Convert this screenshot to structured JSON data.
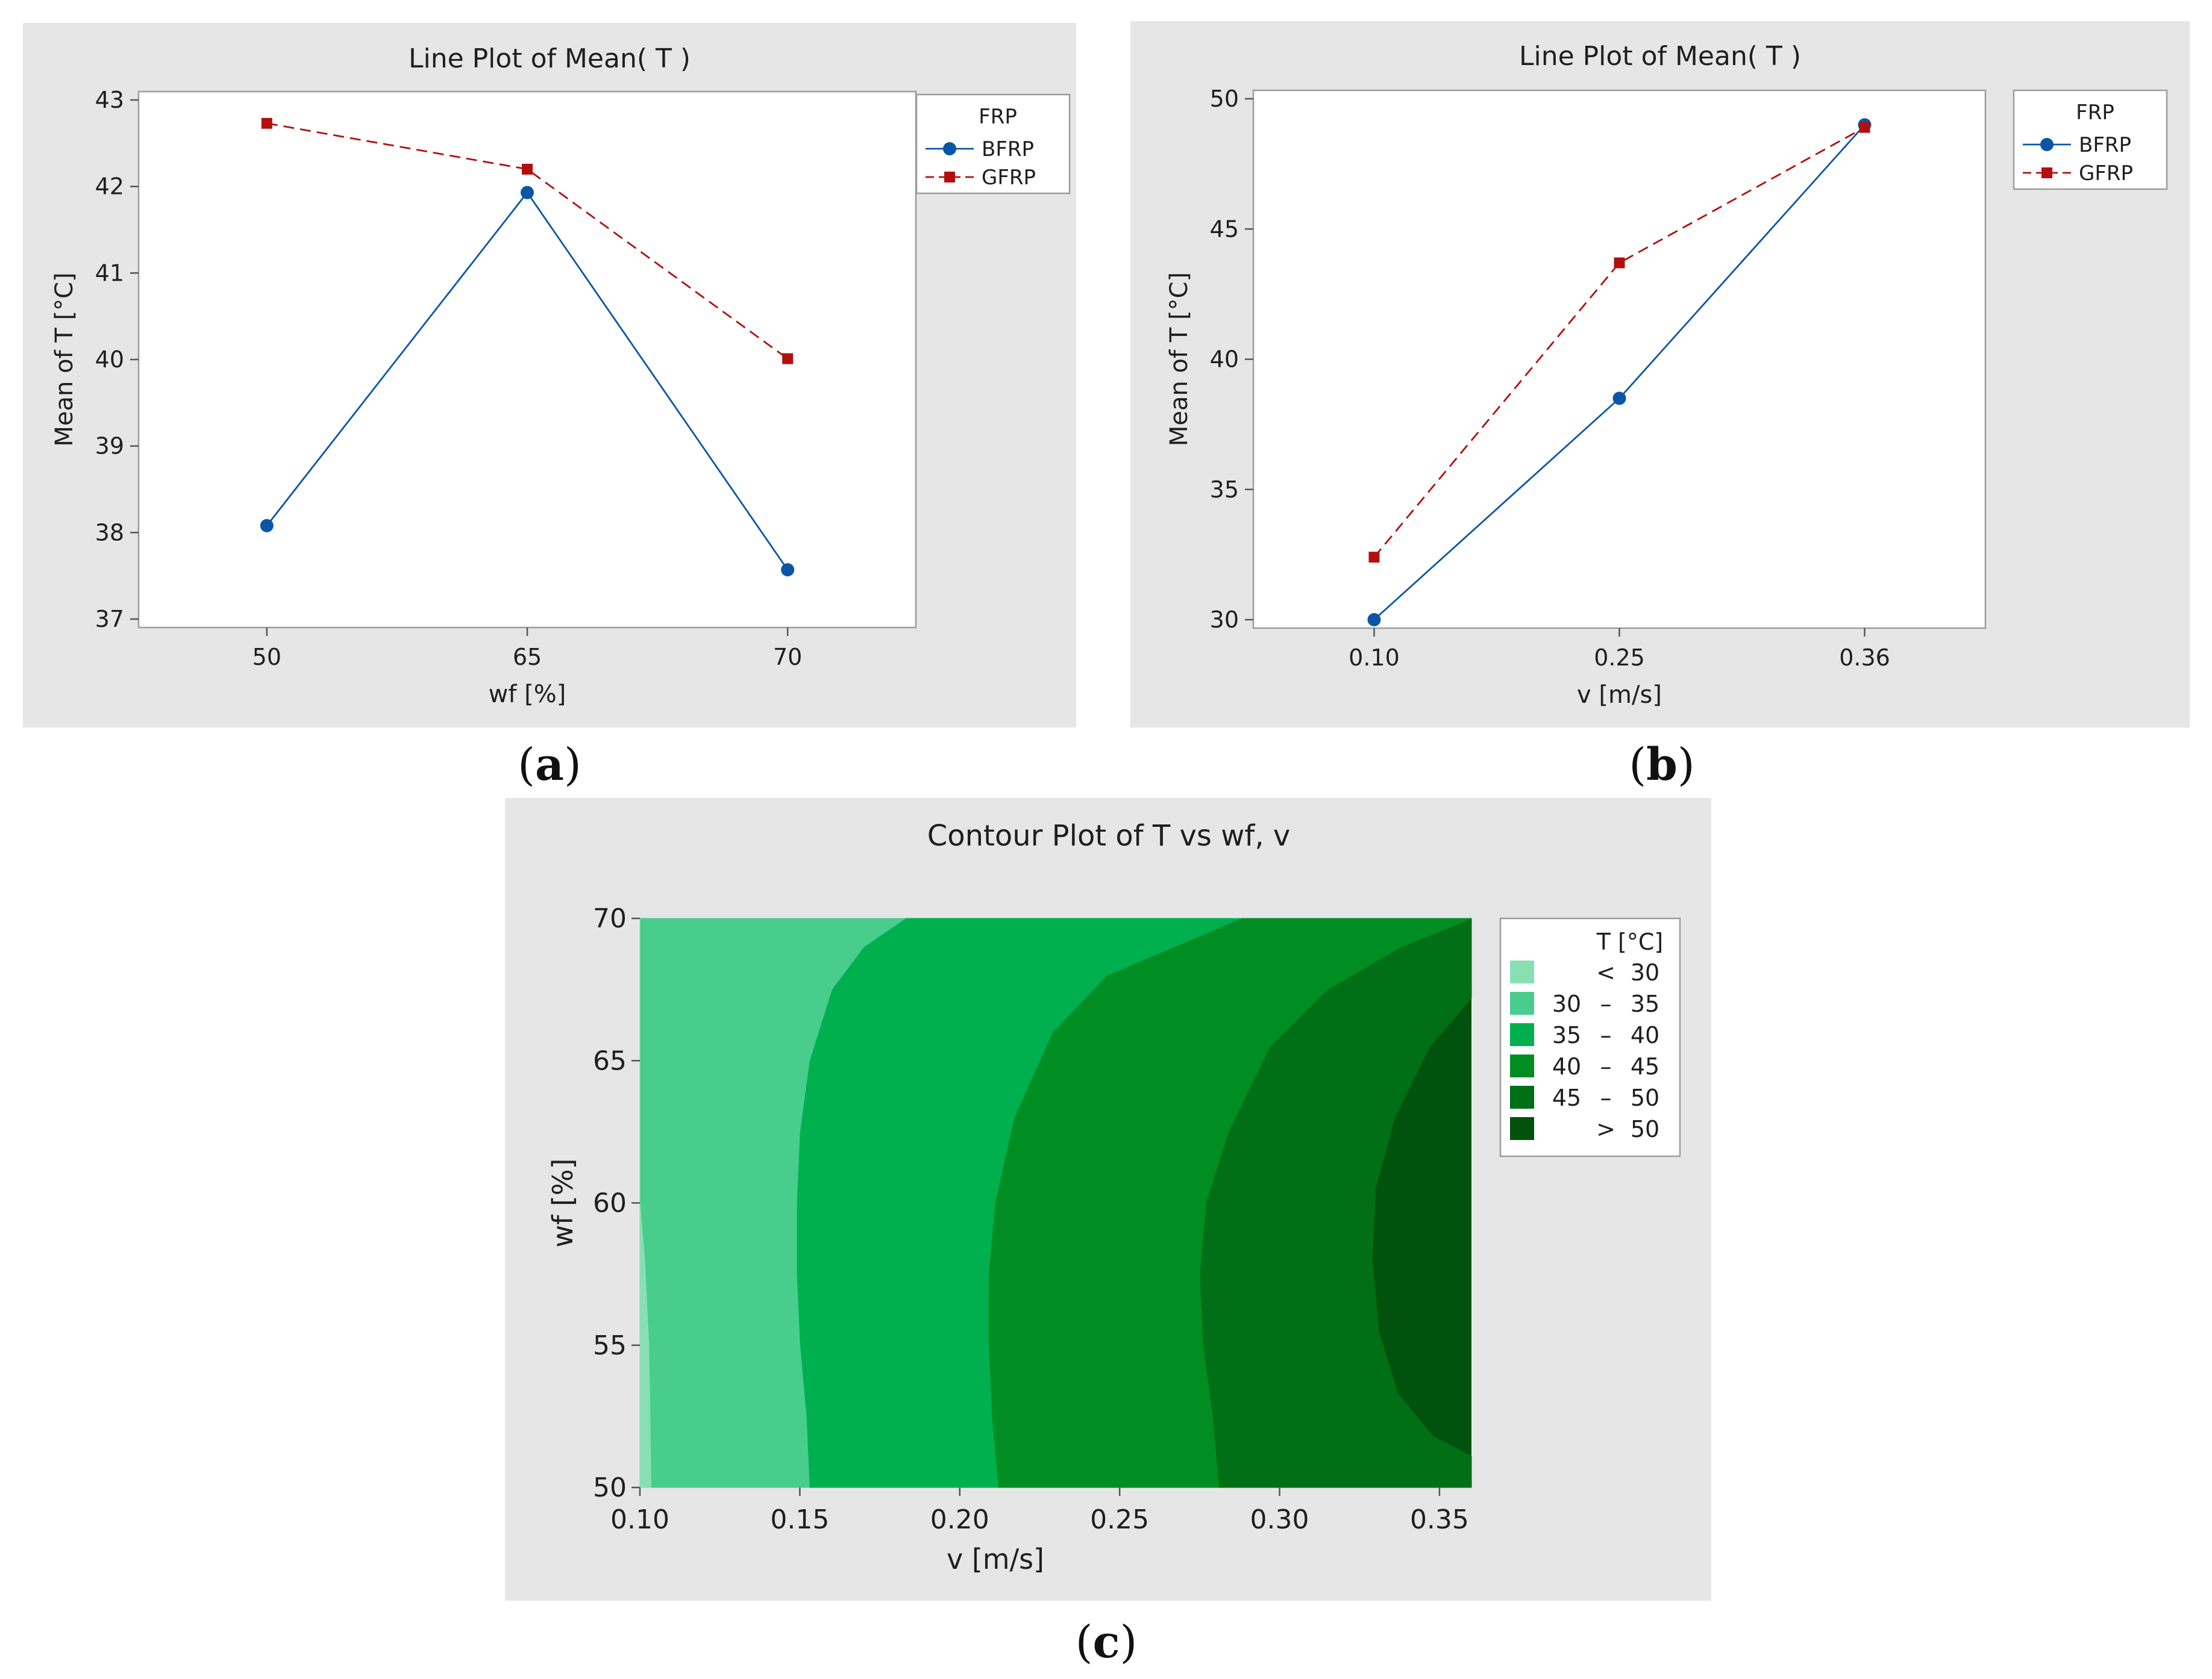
{
  "chart_data": [
    {
      "id": "a",
      "type": "line",
      "title": "Line Plot of Mean( T )",
      "xlabel": "wf [%]",
      "ylabel": "Mean of T  [°C]",
      "categories": [
        "50",
        "65",
        "70"
      ],
      "yticks": [
        "37",
        "38",
        "39",
        "40",
        "41",
        "42",
        "43"
      ],
      "ylim": [
        37,
        43
      ],
      "legend_title": "FRP",
      "series": [
        {
          "name": "BFRP",
          "values": [
            38.08,
            41.93,
            37.57
          ],
          "color": "#0a56a6",
          "marker": "circle",
          "dash": "solid"
        },
        {
          "name": "GFRP",
          "values": [
            42.73,
            42.2,
            40.01
          ],
          "color": "#b30f0f",
          "marker": "square",
          "dash": "dashed"
        }
      ],
      "caption_label": "a"
    },
    {
      "id": "b",
      "type": "line",
      "title": "Line Plot of Mean( T )",
      "xlabel": "v [m/s]",
      "ylabel": "Mean of T  [°C]",
      "categories": [
        "0.10",
        "0.25",
        "0.36"
      ],
      "yticks": [
        "30",
        "35",
        "40",
        "45",
        "50"
      ],
      "ylim": [
        30,
        50
      ],
      "legend_title": "FRP",
      "series": [
        {
          "name": "BFRP",
          "values": [
            30.0,
            38.5,
            49.0
          ],
          "color": "#0a56a6",
          "marker": "circle",
          "dash": "solid"
        },
        {
          "name": "GFRP",
          "values": [
            32.4,
            43.7,
            48.9
          ],
          "color": "#b30f0f",
          "marker": "square",
          "dash": "dashed"
        }
      ],
      "caption_label": "b"
    },
    {
      "id": "c",
      "type": "heatmap",
      "title": "Contour Plot of T vs wf, v",
      "xlabel": "v [m/s]",
      "ylabel": "wf [%]",
      "xlim": [
        0.1,
        0.36
      ],
      "ylim": [
        50,
        70
      ],
      "xticks": [
        "0.10",
        "0.15",
        "0.20",
        "0.25",
        "0.30",
        "0.35"
      ],
      "yticks": [
        "50",
        "55",
        "60",
        "65",
        "70"
      ],
      "legend_title": "T [°C]",
      "levels": [
        {
          "label_lo": "",
          "sep": "<",
          "label_hi": "30",
          "color": "#88e0b2"
        },
        {
          "label_lo": "30",
          "sep": "–",
          "label_hi": "35",
          "color": "#48cd8c"
        },
        {
          "label_lo": "35",
          "sep": "–",
          "label_hi": "40",
          "color": "#00b04f"
        },
        {
          "label_lo": "40",
          "sep": "–",
          "label_hi": "45",
          "color": "#008e22"
        },
        {
          "label_lo": "45",
          "sep": "–",
          "label_hi": "50",
          "color": "#006f15"
        },
        {
          "label_lo": "",
          "sep": ">",
          "label_hi": "50",
          "color": "#00520c"
        }
      ],
      "boundaries": [
        [
          [
            0.1,
            70
          ],
          [
            0.1,
            50
          ],
          [
            0.1035,
            50
          ],
          [
            0.1028,
            55
          ],
          [
            0.1015,
            58
          ],
          [
            0.1,
            60
          ]
        ],
        [
          [
            0.183,
            70
          ],
          [
            0.17,
            69
          ],
          [
            0.16,
            67.5
          ],
          [
            0.153,
            65
          ],
          [
            0.15,
            62.5
          ],
          [
            0.149,
            60
          ],
          [
            0.149,
            57.5
          ],
          [
            0.15,
            55
          ],
          [
            0.152,
            52.5
          ],
          [
            0.153,
            50
          ]
        ],
        [
          [
            0.288,
            70
          ],
          [
            0.267,
            69
          ],
          [
            0.246,
            68
          ],
          [
            0.229,
            66
          ],
          [
            0.217,
            63
          ],
          [
            0.211,
            60
          ],
          [
            0.209,
            57.5
          ],
          [
            0.209,
            55
          ],
          [
            0.21,
            52.5
          ],
          [
            0.212,
            50
          ]
        ],
        [
          [
            0.36,
            70
          ],
          [
            0.338,
            69
          ],
          [
            0.315,
            67.5
          ],
          [
            0.297,
            65.5
          ],
          [
            0.284,
            62.5
          ],
          [
            0.277,
            60
          ],
          [
            0.275,
            57.5
          ],
          [
            0.276,
            55
          ],
          [
            0.279,
            52.5
          ],
          [
            0.281,
            50
          ]
        ],
        [
          [
            0.36,
            67.2
          ],
          [
            0.347,
            65.5
          ],
          [
            0.336,
            63
          ],
          [
            0.33,
            60.5
          ],
          [
            0.329,
            58
          ],
          [
            0.331,
            55.5
          ],
          [
            0.337,
            53.3
          ],
          [
            0.348,
            51.8
          ],
          [
            0.36,
            51.1
          ]
        ]
      ],
      "caption_label": "c"
    }
  ]
}
